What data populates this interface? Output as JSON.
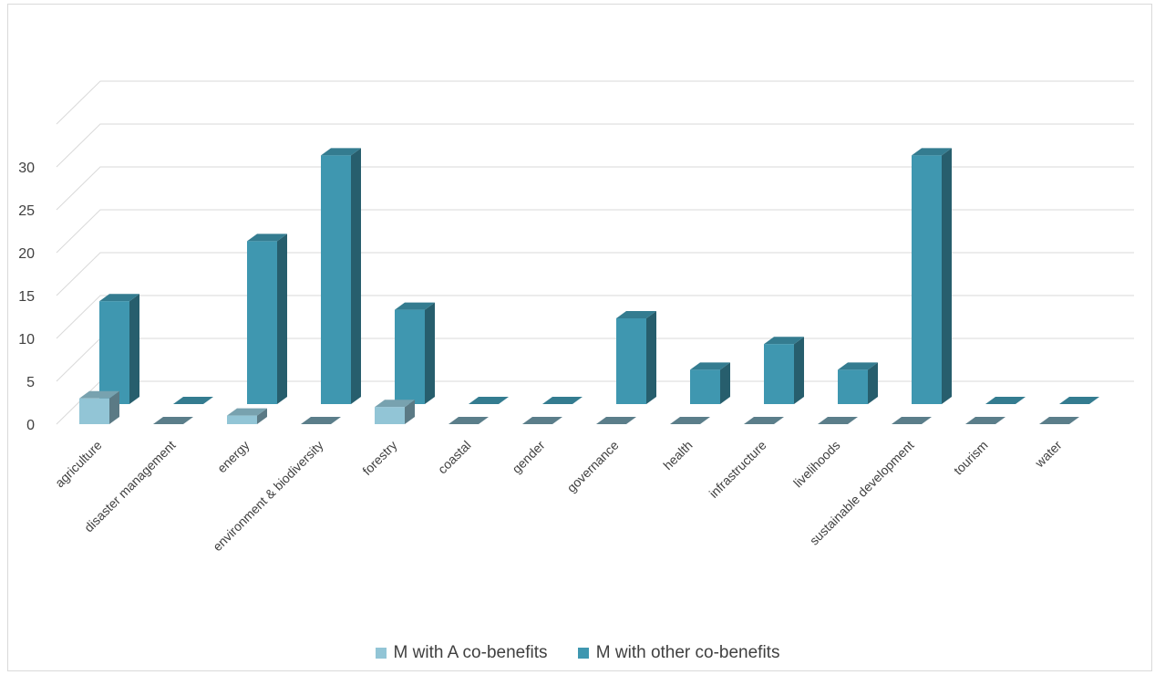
{
  "chart_data": {
    "type": "bar",
    "title": "",
    "xlabel": "",
    "ylabel": "",
    "ylim": [
      0,
      35
    ],
    "yticks": [
      0,
      5,
      10,
      15,
      20,
      25,
      30
    ],
    "grid": true,
    "legend_position": "bottom",
    "categories": [
      "agriculture",
      "disaster management",
      "energy",
      "environment & biodiversity",
      "forestry",
      "coastal",
      "gender",
      "governance",
      "health",
      "infrastructure",
      "livelihoods",
      "sustainable development",
      "tourism",
      "water"
    ],
    "series": [
      {
        "name": "M with A co-benefits",
        "color": "#92c5d6",
        "values": [
          3,
          0,
          1,
          0,
          2,
          0,
          0,
          0,
          0,
          0,
          0,
          0,
          0,
          0
        ]
      },
      {
        "name": "M with other co-benefits",
        "color": "#3f97b0",
        "values": [
          12,
          0,
          19,
          29,
          11,
          0,
          0,
          10,
          4,
          7,
          4,
          29,
          0,
          0
        ]
      }
    ]
  }
}
